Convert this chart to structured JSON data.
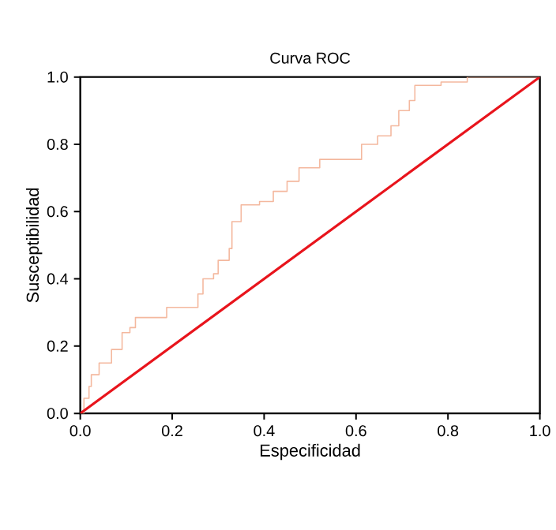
{
  "chart_data": {
    "type": "line",
    "title": "Curva ROC",
    "xlabel": "Especificidad",
    "ylabel": "Susceptibilidad",
    "xlim": [
      0,
      1
    ],
    "ylim": [
      0,
      1
    ],
    "xticks": [
      {
        "value": 0,
        "label": "0.0"
      },
      {
        "value": 0.2,
        "label": "0.2"
      },
      {
        "value": 0.4,
        "label": "0.4"
      },
      {
        "value": 0.6,
        "label": "0.6"
      },
      {
        "value": 0.8,
        "label": "0.8"
      },
      {
        "value": 1,
        "label": "1.0"
      }
    ],
    "yticks": [
      {
        "value": 0,
        "label": "0.0"
      },
      {
        "value": 0.2,
        "label": "0.2"
      },
      {
        "value": 0.4,
        "label": "0.4"
      },
      {
        "value": 0.6,
        "label": "0.6"
      },
      {
        "value": 0.8,
        "label": "0.8"
      },
      {
        "value": 1,
        "label": "1.0"
      }
    ],
    "series": [
      {
        "type": "step",
        "color": "#f4b89e",
        "x": [
          0,
          0.008,
          0.019,
          0.024,
          0.041,
          0.063,
          0.068,
          0.085,
          0.091,
          0.108,
          0.12,
          0.142,
          0.188,
          0.233,
          0.256,
          0.267,
          0.29,
          0.3,
          0.324,
          0.33,
          0.35,
          0.39,
          0.42,
          0.45,
          0.476,
          0.521,
          0.555,
          0.612,
          0.647,
          0.676,
          0.693,
          0.716,
          0.728,
          0.785,
          0.842,
          1
        ],
        "values": [
          0,
          0.045,
          0.08,
          0.115,
          0.15,
          0.15,
          0.19,
          0.19,
          0.24,
          0.255,
          0.285,
          0.285,
          0.315,
          0.315,
          0.355,
          0.4,
          0.415,
          0.455,
          0.49,
          0.57,
          0.62,
          0.63,
          0.66,
          0.69,
          0.73,
          0.755,
          0.755,
          0.8,
          0.825,
          0.855,
          0.9,
          0.93,
          0.975,
          0.985,
          1,
          1
        ]
      },
      {
        "color": "#e8141c",
        "x": [
          0,
          1
        ],
        "values": [
          0,
          1
        ]
      }
    ]
  }
}
